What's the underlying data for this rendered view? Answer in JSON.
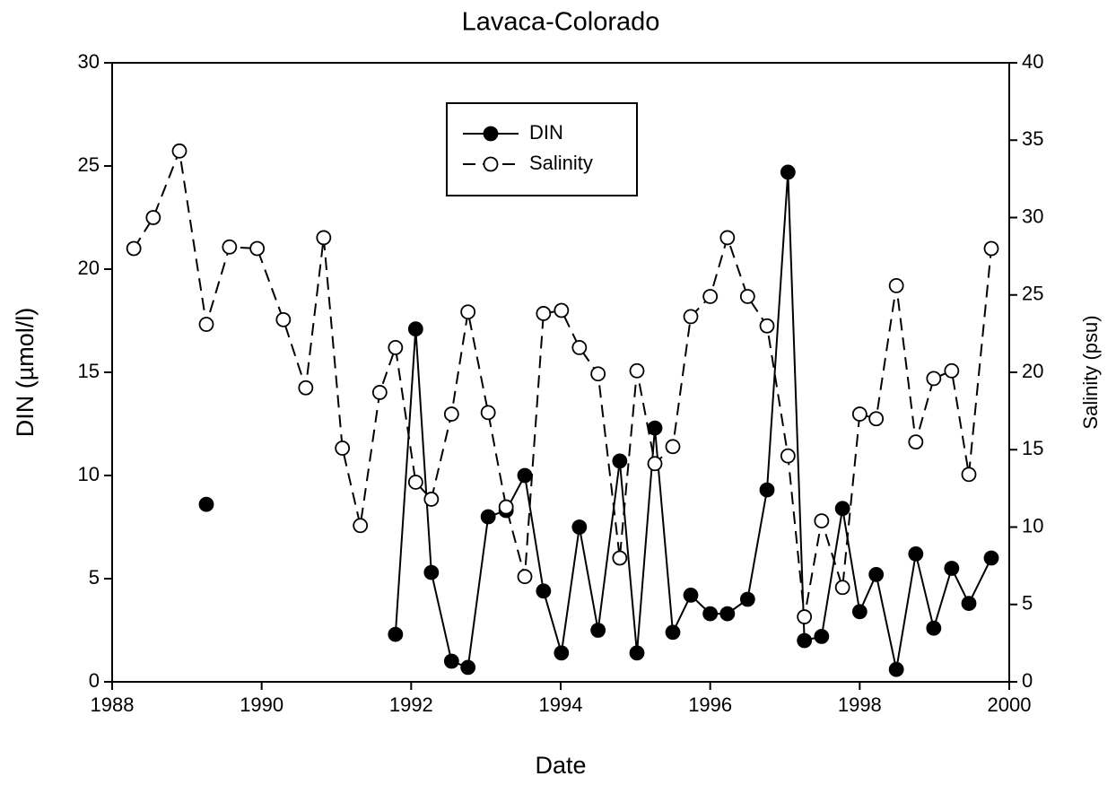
{
  "chart_data": {
    "type": "line",
    "title": "Lavaca-Colorado",
    "x_label": "Date",
    "y_label": "DIN (µmol/l)",
    "y2_label": "Salinity (psu)",
    "xlim": [
      1988,
      2000
    ],
    "xticks": [
      1988,
      1990,
      1992,
      1994,
      1996,
      1998,
      2000
    ],
    "ylim": [
      0,
      30
    ],
    "yticks": [
      0,
      5,
      10,
      15,
      20,
      25,
      30
    ],
    "y2lim": [
      0,
      40
    ],
    "y2ticks": [
      0,
      5,
      10,
      15,
      20,
      25,
      30,
      35,
      40
    ],
    "legend": "top",
    "series": [
      {
        "name": "DIN",
        "color": "#000000",
        "marker_fill": "#000000",
        "dashed": false,
        "x": [
          1989.26,
          null,
          1991.79,
          1992.06,
          1992.27,
          1992.54,
          1992.76,
          1993.03,
          1993.27,
          1993.52,
          1993.77,
          1994.01,
          1994.25,
          1994.5,
          1994.79,
          1995.02,
          1995.26,
          1995.5,
          1995.74,
          1996.0,
          1996.23,
          1996.5,
          1996.76,
          1997.04,
          1997.26,
          1997.49,
          1997.77,
          1998.0,
          1998.22,
          1998.49,
          1998.75,
          1998.99,
          1999.23,
          1999.46,
          1999.76
        ],
        "values": [
          8.6,
          null,
          2.3,
          17.1,
          5.3,
          1.0,
          0.7,
          8.0,
          8.3,
          10.0,
          4.4,
          1.4,
          7.5,
          2.5,
          10.7,
          1.4,
          12.3,
          2.4,
          4.2,
          3.3,
          3.3,
          4.0,
          9.3,
          24.7,
          2.0,
          2.2,
          8.4,
          3.4,
          5.2,
          0.6,
          6.2,
          2.6,
          5.5,
          3.8,
          6.0
        ]
      },
      {
        "name": "Salinity",
        "color": "#000000",
        "marker_fill": "#ffffff",
        "dashed": true,
        "axis": "y2",
        "x": [
          1988.29,
          1988.55,
          1988.9,
          1989.26,
          1989.57,
          1989.94,
          1990.29,
          1990.59,
          1990.83,
          1991.08,
          1991.32,
          1991.58,
          1991.79,
          1992.06,
          1992.27,
          1992.54,
          1992.76,
          1993.03,
          1993.27,
          1993.52,
          1993.77,
          1994.01,
          1994.25,
          1994.5,
          1994.79,
          1995.02,
          1995.26,
          1995.5,
          1995.74,
          1996.0,
          1996.23,
          1996.5,
          1996.76,
          1997.04,
          1997.26,
          1997.49,
          1997.77,
          1998.0,
          1998.22,
          1998.49,
          1998.75,
          1998.99,
          1999.23,
          1999.46,
          1999.76
        ],
        "values": [
          28.0,
          30.0,
          34.3,
          23.1,
          28.1,
          28.0,
          23.4,
          19.0,
          28.7,
          15.1,
          10.1,
          18.7,
          21.6,
          12.9,
          11.8,
          17.3,
          23.9,
          17.4,
          11.3,
          6.8,
          23.8,
          24.0,
          21.6,
          19.9,
          8.0,
          20.1,
          14.1,
          15.2,
          23.6,
          24.9,
          28.7,
          24.9,
          23.0,
          14.6,
          4.2,
          10.4,
          6.1,
          17.3,
          17.0,
          25.6,
          15.5,
          19.6,
          20.1,
          13.4,
          28.0
        ]
      }
    ]
  }
}
